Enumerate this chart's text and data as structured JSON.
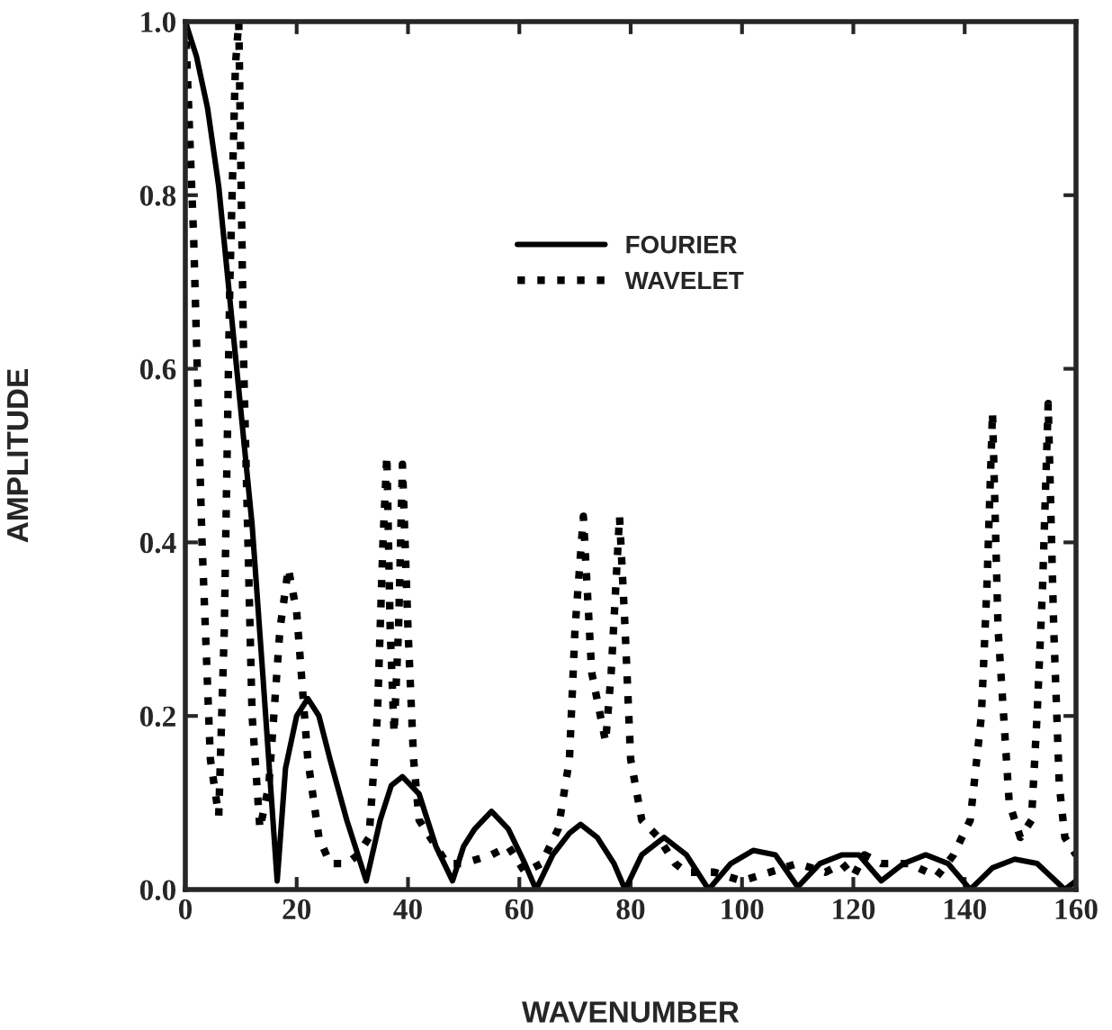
{
  "chart_data": {
    "type": "line",
    "xlabel": "WAVENUMBER",
    "ylabel": "AMPLITUDE",
    "xlim": [
      0,
      160
    ],
    "ylim": [
      0,
      1.0
    ],
    "xticks": [
      0,
      20,
      40,
      60,
      80,
      100,
      120,
      140,
      160
    ],
    "yticks": [
      {
        "value": 0,
        "label": "0.0"
      },
      {
        "value": 0.2,
        "label": "0.2"
      },
      {
        "value": 0.4,
        "label": "0.4"
      },
      {
        "value": 0.6,
        "label": "0.6"
      },
      {
        "value": 0.8,
        "label": "0.8"
      },
      {
        "value": 1.0,
        "label": "1.0"
      }
    ],
    "grid": false,
    "legend": "top",
    "series": [
      {
        "name": "FOURIER",
        "color": "#000000",
        "line_style": "solid",
        "x": [
          0,
          2,
          4,
          6,
          8,
          10,
          12,
          14,
          16.5,
          18,
          20,
          22,
          24,
          26,
          29,
          32.5,
          35,
          37,
          39,
          42,
          45,
          48,
          50,
          52,
          55,
          58,
          61,
          63,
          66,
          69,
          71,
          74,
          77,
          79,
          82,
          86,
          90,
          94,
          98,
          102,
          106,
          110,
          114,
          118,
          121,
          125,
          129,
          133,
          137,
          141,
          145,
          149,
          153,
          158,
          160
        ],
        "values": [
          1.0,
          0.96,
          0.9,
          0.81,
          0.68,
          0.55,
          0.42,
          0.24,
          0.01,
          0.14,
          0.2,
          0.22,
          0.2,
          0.15,
          0.08,
          0.01,
          0.08,
          0.12,
          0.13,
          0.11,
          0.05,
          0.01,
          0.05,
          0.07,
          0.09,
          0.07,
          0.03,
          0.0,
          0.04,
          0.065,
          0.075,
          0.06,
          0.03,
          0.0,
          0.04,
          0.06,
          0.04,
          0.0,
          0.03,
          0.045,
          0.04,
          0.003,
          0.03,
          0.04,
          0.04,
          0.01,
          0.03,
          0.04,
          0.03,
          0.0,
          0.025,
          0.035,
          0.03,
          0.0,
          0.01
        ]
      },
      {
        "name": "WAVELET",
        "color": "#000000",
        "line_style": "dotted",
        "x": [
          0,
          1.5,
          3,
          4.5,
          6,
          7,
          8,
          9,
          9.6,
          10.5,
          12,
          13.4,
          15,
          17,
          18.5,
          20,
          22,
          24,
          26,
          29,
          31,
          33,
          34.5,
          35.5,
          36.2,
          36.8,
          37.5,
          38.3,
          39,
          40,
          41,
          42,
          44,
          47,
          50,
          55,
          58,
          61,
          64,
          67,
          69,
          70,
          71.5,
          73,
          75.5,
          76.5,
          78,
          79,
          80,
          82,
          85,
          88,
          90,
          95,
          100,
          105,
          110,
          115,
          118,
          120,
          122,
          125,
          130,
          135,
          138,
          141,
          143,
          144,
          145,
          146,
          148,
          150,
          152,
          153,
          154,
          155,
          156,
          157,
          158,
          160
        ],
        "values": [
          1.0,
          0.75,
          0.4,
          0.15,
          0.085,
          0.3,
          0.7,
          0.95,
          1.0,
          0.6,
          0.2,
          0.07,
          0.12,
          0.3,
          0.37,
          0.32,
          0.15,
          0.06,
          0.03,
          0.03,
          0.04,
          0.06,
          0.2,
          0.4,
          0.5,
          0.3,
          0.18,
          0.3,
          0.49,
          0.3,
          0.15,
          0.08,
          0.06,
          0.03,
          0.03,
          0.04,
          0.05,
          0.02,
          0.03,
          0.07,
          0.15,
          0.3,
          0.43,
          0.25,
          0.17,
          0.25,
          0.43,
          0.3,
          0.15,
          0.08,
          0.06,
          0.03,
          0.02,
          0.02,
          0.01,
          0.02,
          0.03,
          0.02,
          0.03,
          0.015,
          0.04,
          0.03,
          0.03,
          0.015,
          0.04,
          0.08,
          0.2,
          0.35,
          0.55,
          0.3,
          0.1,
          0.06,
          0.08,
          0.2,
          0.35,
          0.56,
          0.3,
          0.12,
          0.06,
          0.04
        ]
      }
    ]
  }
}
